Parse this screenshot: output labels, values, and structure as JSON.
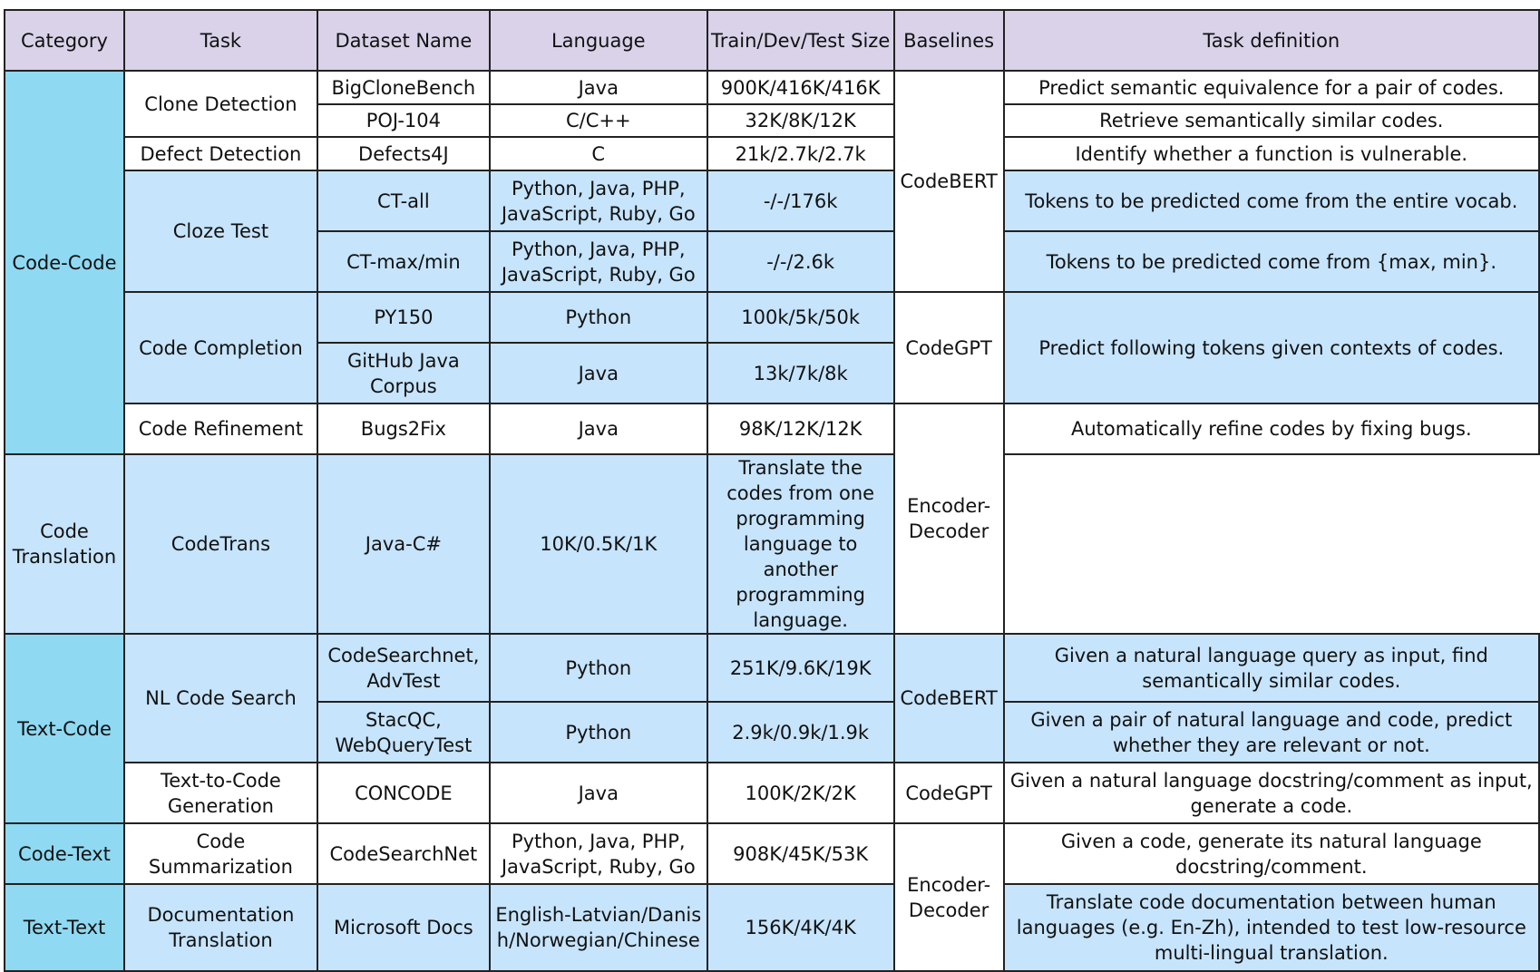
{
  "headers": {
    "category": "Category",
    "task": "Task",
    "dataset": "Dataset Name",
    "language": "Language",
    "size": "Train/Dev/Test Size",
    "baselines": "Baselines",
    "definition": "Task definition"
  },
  "categories": {
    "code_code": "Code-Code",
    "text_code": "Text-Code",
    "code_text": "Code-Text",
    "text_text": "Text-Text"
  },
  "tasks": {
    "clone": "Clone Detection",
    "defect": "Defect Detection",
    "cloze": "Cloze Test",
    "completion": "Code Completion",
    "refinement": "Code Refinement",
    "translation": "Code Translation",
    "search": "NL Code Search",
    "t2c": "Text-to-Code Generation",
    "summ": "Code Summarization",
    "doctrans": "Documentation Translation"
  },
  "baselines": {
    "codebert_1": "CodeBERT",
    "codegpt_1": "CodeGPT",
    "encdec_1": "Encoder-Decoder",
    "codebert_2": "CodeBERT",
    "codegpt_2": "CodeGPT",
    "encdec_2": "Encoder-Decoder"
  },
  "rows": [
    {
      "dataset": "BigCloneBench",
      "language": "Java",
      "size": "900K/416K/416K",
      "definition": "Predict semantic equivalence for a pair of codes."
    },
    {
      "dataset": "POJ-104",
      "language": "C/C++",
      "size": "32K/8K/12K",
      "definition": "Retrieve semantically similar codes."
    },
    {
      "dataset": "Defects4J",
      "language": "C",
      "size": "21k/2.7k/2.7k",
      "definition": "Identify whether a function is vulnerable."
    },
    {
      "dataset": "CT-all",
      "language": "Python, Java, PHP, JavaScript, Ruby, Go",
      "size": "-/-/176k",
      "definition": "Tokens to be predicted come from the entire vocab."
    },
    {
      "dataset": "CT-max/min",
      "language": "Python, Java, PHP, JavaScript, Ruby, Go",
      "size": "-/-/2.6k",
      "definition": "Tokens to be predicted come from {max, min}."
    },
    {
      "dataset": "PY150",
      "language": "Python",
      "size": "100k/5k/50k",
      "definition": "Predict following tokens given contexts of codes."
    },
    {
      "dataset": "GitHub Java Corpus",
      "language": "Java",
      "size": "13k/7k/8k"
    },
    {
      "dataset": "Bugs2Fix",
      "language": "Java",
      "size": "98K/12K/12K",
      "definition": "Automatically refine codes by fixing bugs."
    },
    {
      "dataset": "CodeTrans",
      "language": "Java-C#",
      "size": "10K/0.5K/1K",
      "definition": "Translate the codes from one programming language to another programming language."
    },
    {
      "dataset": "CodeSearchnet, AdvTest",
      "language": "Python",
      "size": "251K/9.6K/19K",
      "definition": "Given a natural language query as input, find semantically similar codes."
    },
    {
      "dataset": "StacQC, WebQueryTest",
      "language": "Python",
      "size": "2.9k/0.9k/1.9k",
      "definition": "Given a pair of natural language and code, predict whether they are relevant or not."
    },
    {
      "dataset": "CONCODE",
      "language": "Java",
      "size": "100K/2K/2K",
      "definition": "Given a natural language docstring/comment as input, generate a code."
    },
    {
      "dataset": "CodeSearchNet",
      "language": "Python, Java, PHP, JavaScript, Ruby, Go",
      "size": "908K/45K/53K",
      "definition": "Given a code, generate its natural language docstring/comment."
    },
    {
      "dataset": "Microsoft Docs",
      "language": "English-Latvian/Danish/Norwegian/Chinese",
      "size": "156K/4K/4K",
      "definition": "Translate code documentation between human languages (e.g. En-Zh), intended to test low-resource multi-lingual translation."
    }
  ]
}
